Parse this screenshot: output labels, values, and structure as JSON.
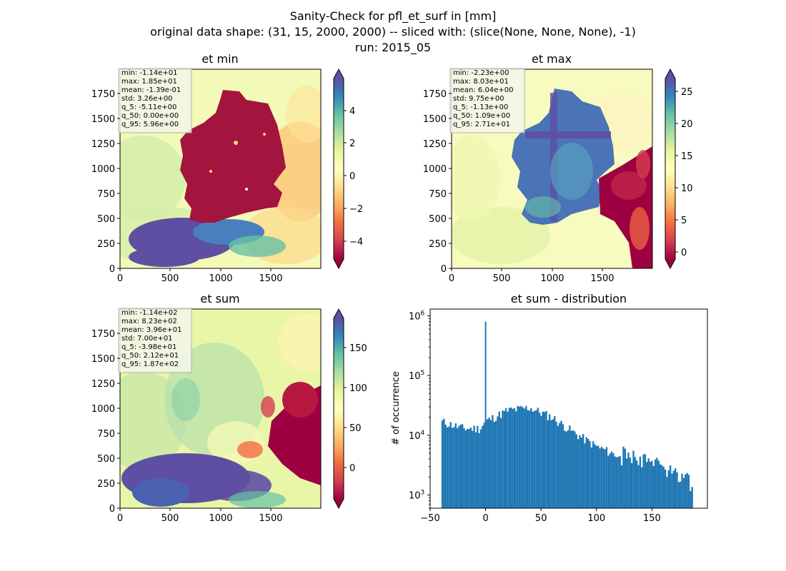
{
  "figure": {
    "title_lines": [
      "Sanity-Check for pfl_et_surf in [mm]",
      "original data shape: (31, 15, 2000, 2000) -- sliced with: (slice(None, None, None), -1)",
      "run: 2015_05"
    ]
  },
  "panels": {
    "et_min": {
      "title": "et min",
      "stats": [
        "min: -1.14e+01",
        "max: 1.85e+01",
        "mean: -1.39e-01",
        "std: 3.26e+00",
        "q_5: -5.11e+00",
        "q_50: 0.00e+00",
        "q_95: 5.96e+00"
      ],
      "colorbar_ticks": [
        "4",
        "2",
        "0",
        "−2",
        "−4"
      ]
    },
    "et_max": {
      "title": "et max",
      "stats": [
        "min: -2.23e+00",
        "max: 8.03e+01",
        "mean: 6.04e+00",
        "std: 9.75e+00",
        "q_5: -1.13e+00",
        "q_50: 1.09e+00",
        "q_95: 2.71e+01"
      ],
      "colorbar_ticks": [
        "25",
        "20",
        "15",
        "10",
        "5",
        "0"
      ]
    },
    "et_sum": {
      "title": "et sum",
      "stats": [
        "min: -1.14e+02",
        "max: 8.23e+02",
        "mean: 3.96e+01",
        "std: 7.00e+01",
        "q_5: -3.98e+01",
        "q_50: 2.12e+01",
        "q_95: 1.87e+02"
      ],
      "colorbar_ticks": [
        "150",
        "100",
        "50",
        "0"
      ]
    },
    "distribution": {
      "title": "et sum - distribution",
      "ylabel": "# of occurrence"
    }
  },
  "map_axis": {
    "x_ticks": [
      "0",
      "500",
      "1000",
      "1500"
    ],
    "y_ticks": [
      "1750",
      "1500",
      "1250",
      "1000",
      "750",
      "500",
      "250",
      "0"
    ]
  },
  "chart_data": [
    {
      "type": "heatmap",
      "title": "et min",
      "xlim": [
        0,
        2000
      ],
      "ylim": [
        0,
        2000
      ],
      "x_ticks": [
        0,
        500,
        1000,
        1500
      ],
      "y_ticks": [
        0,
        250,
        500,
        750,
        1000,
        1250,
        1500,
        1750
      ],
      "colormap": "Spectral",
      "colorbar_range": [
        -5.11,
        5.96
      ],
      "colorbar_ticks": [
        -4,
        -2,
        0,
        2,
        4
      ],
      "colorbar_extend": "both",
      "grid": false
    },
    {
      "type": "heatmap",
      "title": "et max",
      "xlim": [
        0,
        2000
      ],
      "ylim": [
        0,
        2000
      ],
      "x_ticks": [
        0,
        500,
        1000,
        1500
      ],
      "y_ticks": [
        0,
        250,
        500,
        750,
        1000,
        1250,
        1500,
        1750
      ],
      "colormap": "Spectral",
      "colorbar_range": [
        -1.13,
        27.1
      ],
      "colorbar_ticks": [
        0,
        5,
        10,
        15,
        20,
        25
      ],
      "colorbar_extend": "both",
      "grid": false
    },
    {
      "type": "heatmap",
      "title": "et sum",
      "xlim": [
        0,
        2000
      ],
      "ylim": [
        0,
        2000
      ],
      "x_ticks": [
        0,
        500,
        1000,
        1500
      ],
      "y_ticks": [
        0,
        250,
        500,
        750,
        1000,
        1250,
        1500,
        1750
      ],
      "colormap": "Spectral",
      "colorbar_range": [
        -39.8,
        187
      ],
      "colorbar_ticks": [
        0,
        50,
        100,
        150
      ],
      "colorbar_extend": "both",
      "grid": false
    },
    {
      "type": "bar",
      "title": "et sum - distribution",
      "ylabel": "# of occurrence",
      "xlabel": "",
      "xlim": [
        -50,
        200
      ],
      "ylim": [
        600,
        1300000
      ],
      "y_scale": "log",
      "x_ticks": [
        -50,
        0,
        50,
        100,
        150
      ],
      "y_ticks": [
        1000,
        10000,
        100000,
        1000000
      ],
      "y_tick_labels": [
        "10^3",
        "10^4",
        "10^5",
        "10^6"
      ],
      "color": "#1f77b4",
      "bins_range": [
        -39.8,
        187
      ],
      "spike": {
        "x": 0,
        "count": 800000
      },
      "approx_profile": [
        {
          "x": -39.8,
          "count": 17000
        },
        {
          "x": -20,
          "count": 13000
        },
        {
          "x": -5,
          "count": 13000
        },
        {
          "x": 0,
          "count": 17000
        },
        {
          "x": 20,
          "count": 26000
        },
        {
          "x": 40,
          "count": 29000
        },
        {
          "x": 60,
          "count": 20000
        },
        {
          "x": 80,
          "count": 11000
        },
        {
          "x": 100,
          "count": 6500
        },
        {
          "x": 120,
          "count": 4500
        },
        {
          "x": 140,
          "count": 4000
        },
        {
          "x": 160,
          "count": 3000
        },
        {
          "x": 180,
          "count": 2000
        },
        {
          "x": 187,
          "count": 1200
        }
      ]
    }
  ]
}
